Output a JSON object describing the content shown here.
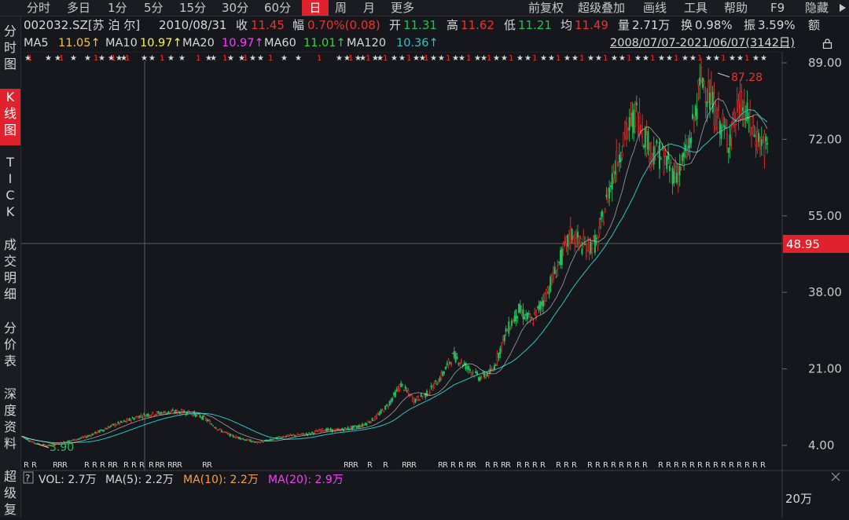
{
  "toolbar": {
    "periods": [
      "分时",
      "多日",
      "1分",
      "5分",
      "15分",
      "30分",
      "60分",
      "日",
      "周",
      "月",
      "更多"
    ],
    "active_period": "日",
    "right_items": [
      "前复权",
      "超级叠加",
      "画线",
      "工具",
      "帮助",
      "F9",
      "隐藏"
    ]
  },
  "sidebar": {
    "tabs": [
      "分\n时\n图",
      "K\n线\n图",
      "T\nI\nC\nK",
      "成\n交\n明\n细",
      "分\n价\n表",
      "深\n度\n资\n料",
      "超\n级\n复"
    ],
    "active": "K线图"
  },
  "quote": {
    "code": "002032.SZ[苏 泊 尔]",
    "date": "2010/08/31",
    "close_label": "收",
    "close": "11.45",
    "change_label": "幅",
    "change": "0.70%(0.08)",
    "open_label": "开",
    "open": "11.31",
    "high_label": "高",
    "high": "11.62",
    "low_label": "低",
    "low": "11.21",
    "avg_label": "均",
    "avg": "11.49",
    "vol_label": "量",
    "vol": "2.71万",
    "turnover_label": "换",
    "turnover": "0.98%",
    "amp_label": "振",
    "amp": "3.59%",
    "amount_label": "额"
  },
  "ma_bar": {
    "ma5_label": "MA5",
    "ma5": "11.05↑",
    "ma10_label": "MA10",
    "ma10": "10.97↑",
    "ma20_label": "MA20",
    "ma20": "10.97↑",
    "ma60_label": "MA60",
    "ma60": "11.01↑",
    "ma120_label": "MA120",
    "ma120": "10.36↑",
    "range": "2008/07/07-2021/06/07(3142日)"
  },
  "vol_bar": {
    "vol": "VOL: 2.7万",
    "ma5": "MA(5): 2.2万",
    "ma10": "MA(10): 2.2万",
    "ma20": "MA(20): 2.9万",
    "axis_label": "20万"
  },
  "chart_data": {
    "type": "candlestick",
    "y_ticks": [
      "89.00",
      "72.00",
      "55.00",
      "38.00",
      "21.00",
      "4.00"
    ],
    "y_values": [
      89,
      72,
      55,
      38,
      21,
      4
    ],
    "crosshair_price": "48.95",
    "max_label": "87.28",
    "min_label": "3.90",
    "close_points": [
      6,
      4.5,
      3.9,
      4.6,
      5.2,
      6.0,
      7.2,
      8.5,
      9.4,
      10.5,
      11.0,
      11.3,
      11.5,
      11.2,
      10.0,
      7.6,
      6.2,
      5.4,
      4.6,
      5.2,
      6.0,
      6.3,
      6.6,
      7.5,
      7.3,
      7.8,
      8.4,
      10.0,
      13.0,
      17.5,
      14.0,
      15.5,
      19.0,
      24.0,
      21.5,
      19.0,
      20.5,
      29.0,
      34.0,
      31.5,
      37.0,
      44.0,
      51.0,
      48.0,
      49.0,
      62.0,
      72.0,
      78.0,
      70.0,
      68.0,
      64.0,
      70.0,
      86.0,
      78.0,
      72.0,
      80.0,
      73.0,
      70.0
    ],
    "colors": {
      "up": "#e8332f",
      "down": "#22c05a",
      "ma5": "#f7f73e",
      "ma20": "#ff39ff",
      "ma60": "#3fbf3f",
      "ma120": "#27c6c6",
      "crosshair_bg": "#e0222c"
    }
  }
}
